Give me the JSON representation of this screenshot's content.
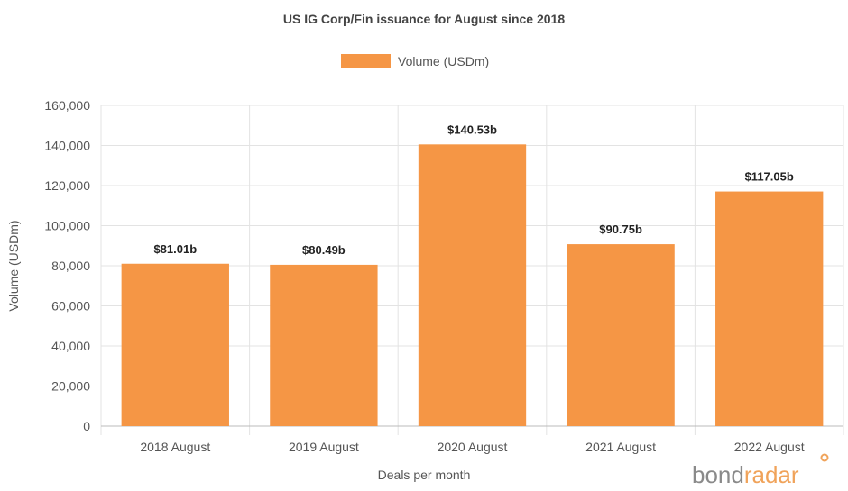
{
  "chart_data": {
    "type": "bar",
    "title": "US IG Corp/Fin issuance for August since 2018",
    "xlabel": "Deals per month",
    "ylabel": "Volume (USDm)",
    "categories": [
      "2018 August",
      "2019 August",
      "2020 August",
      "2021 August",
      "2022 August"
    ],
    "series": [
      {
        "name": "Volume (USDm)",
        "values": [
          81010,
          80490,
          140530,
          90750,
          117050
        ],
        "data_labels": [
          "$81.01b",
          "$80.49b",
          "$140.53b",
          "$90.75b",
          "$117.05b"
        ]
      }
    ],
    "ylim": [
      0,
      160000
    ],
    "yticks": [
      "0",
      "20,000",
      "40,000",
      "60,000",
      "80,000",
      "100,000",
      "120,000",
      "140,000",
      "160,000"
    ],
    "grid": true,
    "legend_position": "top-center",
    "colors": {
      "bar": "#F59645",
      "grid": "#e3e3e3",
      "axis": "#bbbbbb"
    }
  },
  "brand": {
    "part1": "bond",
    "part2": "radar",
    "color_part1": "#8a8a8a",
    "color_part2": "#f0a35a"
  }
}
